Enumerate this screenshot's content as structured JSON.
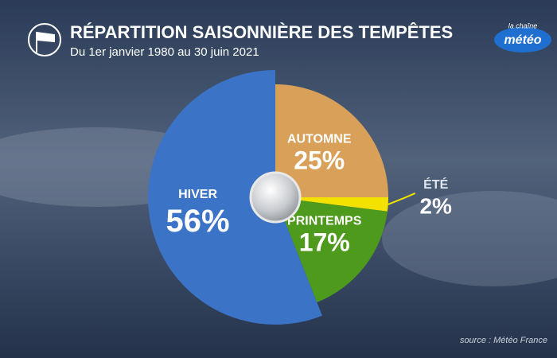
{
  "chart_data": {
    "type": "pie",
    "title": "RÉPARTITION SAISONNIÈRE DES TEMPÊTES",
    "subtitle": "Du 1er janvier 1980 au 30 juin 2021",
    "categories": [
      "AUTOMNE",
      "ÉTÉ",
      "PRINTEMPS",
      "HIVER"
    ],
    "values": [
      25,
      2,
      17,
      56
    ],
    "value_labels": [
      "25%",
      "2%",
      "17%",
      "56%"
    ],
    "colors": [
      "#d9a05a",
      "#f3e200",
      "#4e9a1c",
      "#3b73c6"
    ],
    "source": "source : Météo France",
    "logo": {
      "top": "la chaîne",
      "bottom": "météo"
    }
  }
}
